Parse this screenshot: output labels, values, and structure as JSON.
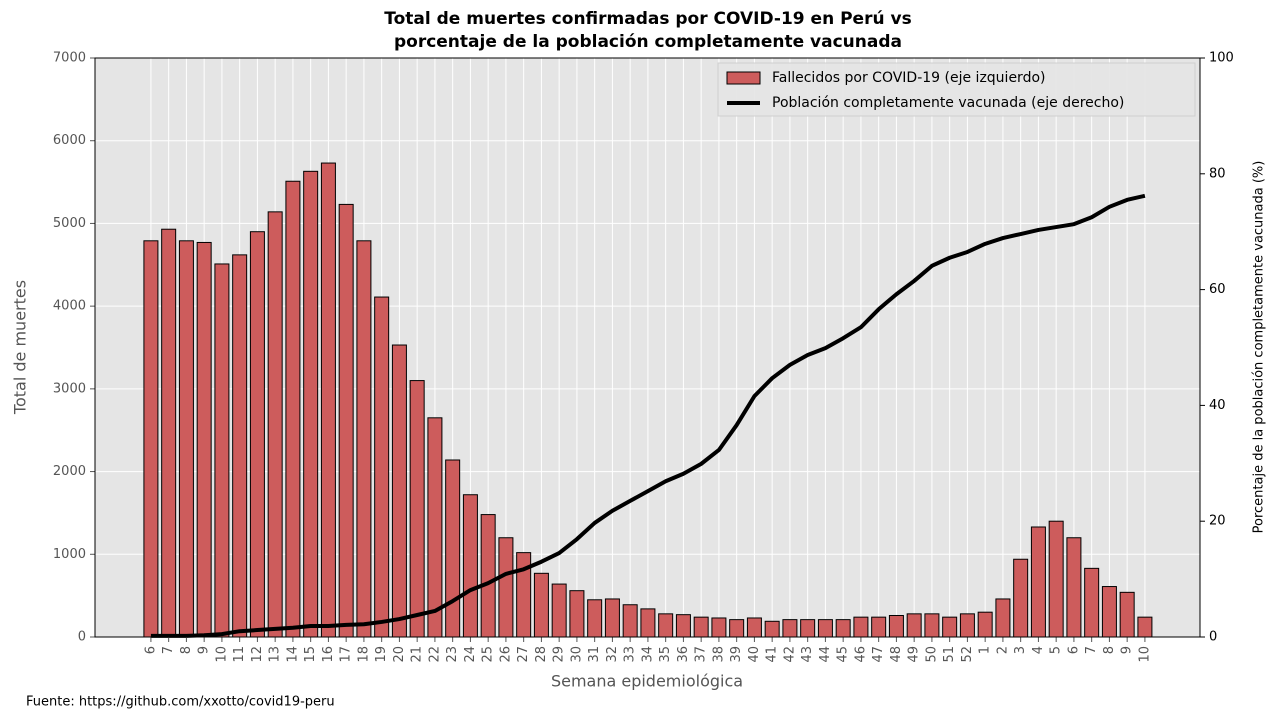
{
  "chart_data": {
    "type": "bar_line",
    "title_lines": [
      "Total de muertes confirmadas por COVID-19 en Perú vs",
      "porcentaje de la población completamente vacunada"
    ],
    "x_label": "Semana epidemiológica",
    "y_label": "Total de muertes",
    "y2_label": "Porcentaje de la población completamente vacunada (%)",
    "source": "Fuente: https://github.com/xxotto/covid19-peru",
    "categories": [
      "6",
      "7",
      "8",
      "9",
      "10",
      "11",
      "12",
      "13",
      "14",
      "15",
      "16",
      "17",
      "18",
      "19",
      "20",
      "21",
      "22",
      "23",
      "24",
      "25",
      "26",
      "27",
      "28",
      "29",
      "30",
      "31",
      "32",
      "33",
      "34",
      "35",
      "36",
      "37",
      "38",
      "39",
      "40",
      "41",
      "42",
      "43",
      "44",
      "45",
      "46",
      "47",
      "48",
      "49",
      "50",
      "51",
      "52",
      "1",
      "2",
      "3",
      "4",
      "5",
      "6",
      "7",
      "8",
      "9",
      "10"
    ],
    "series": [
      {
        "name": "Fallecidos por COVID-19 (eje izquierdo)",
        "type": "bar",
        "color": "#cd5c5c",
        "values": [
          4790,
          4930,
          4790,
          4770,
          4510,
          4620,
          4900,
          5140,
          5510,
          5630,
          5730,
          5230,
          4790,
          4110,
          3530,
          3100,
          2650,
          2140,
          1720,
          1480,
          1200,
          1020,
          770,
          640,
          560,
          450,
          460,
          390,
          340,
          280,
          270,
          240,
          230,
          210,
          230,
          190,
          210,
          210,
          210,
          210,
          240,
          240,
          260,
          280,
          280,
          240,
          280,
          300,
          460,
          940,
          1330,
          1400,
          1200,
          830,
          610,
          540,
          240
        ]
      },
      {
        "name": "Población completamente vacunada (eje derecho)",
        "type": "line",
        "axis": "y2",
        "color": "#000000",
        "values": [
          0.2,
          0.2,
          0.2,
          0.3,
          0.5,
          1,
          1.2,
          1.4,
          1.6,
          1.9,
          1.9,
          2.1,
          2.2,
          2.6,
          3.1,
          3.8,
          4.5,
          6.2,
          8.1,
          9.3,
          10.9,
          11.7,
          13,
          14.5,
          16.9,
          19.7,
          21.8,
          23.5,
          25.2,
          26.9,
          28.2,
          29.9,
          32.3,
          36.6,
          41.6,
          44.7,
          47,
          48.7,
          49.9,
          51.6,
          53.5,
          56.6,
          59.2,
          61.5,
          64.1,
          65.5,
          66.5,
          67.9,
          68.9,
          69.6,
          70.3,
          70.8,
          71.3,
          72.5,
          74.3,
          75.5,
          76.2
        ]
      }
    ],
    "ylim": [
      0,
      7000
    ],
    "yticks": [
      0,
      1000,
      2000,
      3000,
      4000,
      5000,
      6000,
      7000
    ],
    "y2lim": [
      0,
      100
    ],
    "y2ticks": [
      0,
      20,
      40,
      60,
      80,
      100
    ],
    "grid": true,
    "legend": "upper right"
  }
}
